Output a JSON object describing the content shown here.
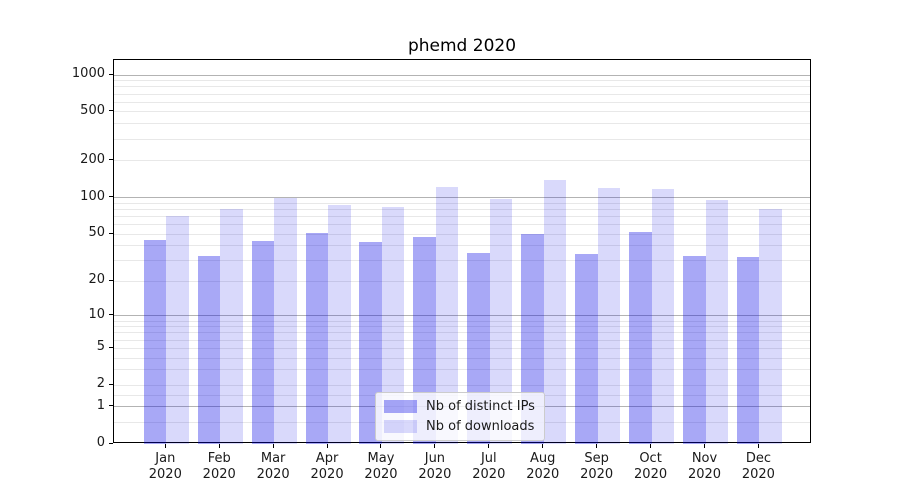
{
  "title": "phemd 2020",
  "chart_data": {
    "type": "bar",
    "title": "phemd 2020",
    "categories": [
      "Jan",
      "Feb",
      "Mar",
      "Apr",
      "May",
      "Jun",
      "Jul",
      "Aug",
      "Sep",
      "Oct",
      "Nov",
      "Dec"
    ],
    "year": "2020",
    "series": [
      {
        "name": "Nb of distinct IPs",
        "color": "rgba(0,0,230,0.34)",
        "values": [
          45,
          33,
          44,
          51,
          43,
          47,
          35,
          50,
          34,
          52,
          33,
          32
        ]
      },
      {
        "name": "Nb of downloads",
        "color": "rgba(0,0,230,0.15)",
        "values": [
          71,
          81,
          100,
          86,
          84,
          123,
          97,
          140,
          120,
          117,
          95,
          80
        ]
      }
    ],
    "xlabel": "",
    "ylabel": "",
    "yscale": "log1p",
    "ylim": [
      0,
      1325
    ],
    "yticks": [
      0,
      1,
      2,
      5,
      10,
      20,
      50,
      100,
      200,
      500,
      1000
    ],
    "grid": {
      "major_values": [
        1,
        10,
        100,
        1000
      ],
      "minor_values": [
        0.5,
        1.5,
        2,
        3,
        4,
        5,
        6,
        7,
        8,
        9,
        20,
        30,
        40,
        50,
        60,
        70,
        80,
        90,
        200,
        300,
        400,
        500,
        600,
        700,
        800,
        900
      ],
      "major_color": "#b3b3b3",
      "minor_color": "#e8e8e8"
    },
    "legend_position": "lower center"
  }
}
